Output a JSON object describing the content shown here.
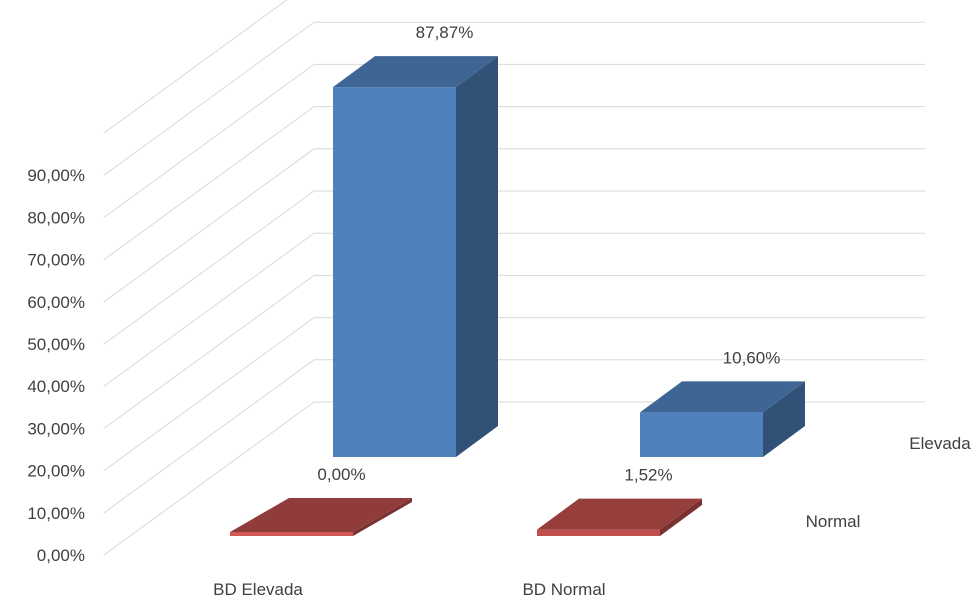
{
  "chart_data": {
    "type": "bar",
    "style": "3d-column",
    "categories": [
      "BD Elevada",
      "BD Normal"
    ],
    "series": [
      {
        "name": "Elevada",
        "values": [
          87.87,
          10.6
        ],
        "labels": [
          "87,87%",
          "10,60%"
        ],
        "color": "#4f81bd"
      },
      {
        "name": "Normal",
        "values": [
          0.0,
          1.52
        ],
        "labels": [
          "0,00%",
          "1,52%"
        ],
        "color": "#c0504d"
      }
    ],
    "ylim": [
      0,
      100
    ],
    "yticks": [
      "0,00%",
      "10,00%",
      "20,00%",
      "30,00%",
      "40,00%",
      "50,00%",
      "60,00%",
      "70,00%",
      "80,00%",
      "90,00%"
    ],
    "grid": true,
    "legend": "none"
  }
}
